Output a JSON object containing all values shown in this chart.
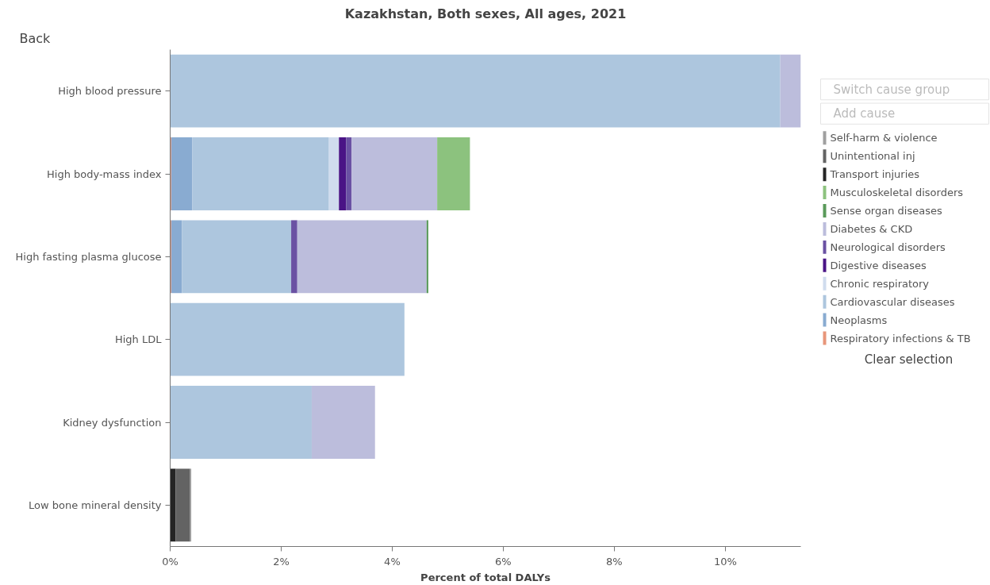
{
  "chart_data": {
    "type": "bar",
    "orientation": "horizontal",
    "stacked": true,
    "title": "Kazakhstan, Both sexes, All ages, 2021",
    "xlabel": "Percent of total DALYs",
    "categories": [
      "High blood pressure",
      "High body-mass index",
      "High fasting plasma glucose",
      "High LDL",
      "Kidney dysfunction",
      "Low bone mineral density"
    ],
    "series": [
      {
        "name": "Respiratory infections & TB",
        "color": "#e8967a",
        "values": [
          0,
          0.02,
          0.02,
          0,
          0,
          0
        ]
      },
      {
        "name": "Neoplasms",
        "color": "#89abd1",
        "values": [
          0,
          0.38,
          0.19,
          0,
          0,
          0
        ]
      },
      {
        "name": "Cardiovascular diseases",
        "color": "#adc6de",
        "values": [
          10.99,
          2.46,
          1.97,
          4.22,
          2.55,
          0
        ]
      },
      {
        "name": "Chronic respiratory",
        "color": "#d0dcee",
        "values": [
          0,
          0.18,
          0,
          0,
          0,
          0
        ]
      },
      {
        "name": "Digestive diseases",
        "color": "#4a1486",
        "values": [
          0,
          0.13,
          0,
          0,
          0,
          0
        ]
      },
      {
        "name": "Neurological disorders",
        "color": "#6a51a3",
        "values": [
          0,
          0.1,
          0.11,
          0,
          0,
          0
        ]
      },
      {
        "name": "Diabetes & CKD",
        "color": "#bcbddc",
        "values": [
          0.37,
          1.54,
          2.33,
          0,
          1.14,
          0
        ]
      },
      {
        "name": "Sense organ diseases",
        "color": "#5a9a5a",
        "values": [
          0,
          0,
          0.03,
          0,
          0,
          0
        ]
      },
      {
        "name": "Musculoskeletal disorders",
        "color": "#8cc27e",
        "values": [
          0,
          0.59,
          0,
          0,
          0,
          0
        ]
      },
      {
        "name": "Transport injuries",
        "color": "#252525",
        "values": [
          0,
          0,
          0,
          0,
          0,
          0.1
        ]
      },
      {
        "name": "Unintentional inj",
        "color": "#636363",
        "values": [
          0,
          0,
          0,
          0,
          0,
          0.26
        ]
      },
      {
        "name": "Self-harm & violence",
        "color": "#a0a0a0",
        "values": [
          0,
          0,
          0,
          0,
          0,
          0.02
        ]
      }
    ],
    "xlim": [
      0,
      11.36
    ],
    "xticks": [
      {
        "value": 0,
        "label": "0%"
      },
      {
        "value": 2,
        "label": "2%"
      },
      {
        "value": 4,
        "label": "4%"
      },
      {
        "value": 6,
        "label": "6%"
      },
      {
        "value": 8,
        "label": "8%"
      },
      {
        "value": 10,
        "label": "10%"
      }
    ],
    "grid": false,
    "legend": "right",
    "annotations": [
      "Back",
      "Switch cause group",
      "Add cause",
      "Clear selection"
    ]
  }
}
